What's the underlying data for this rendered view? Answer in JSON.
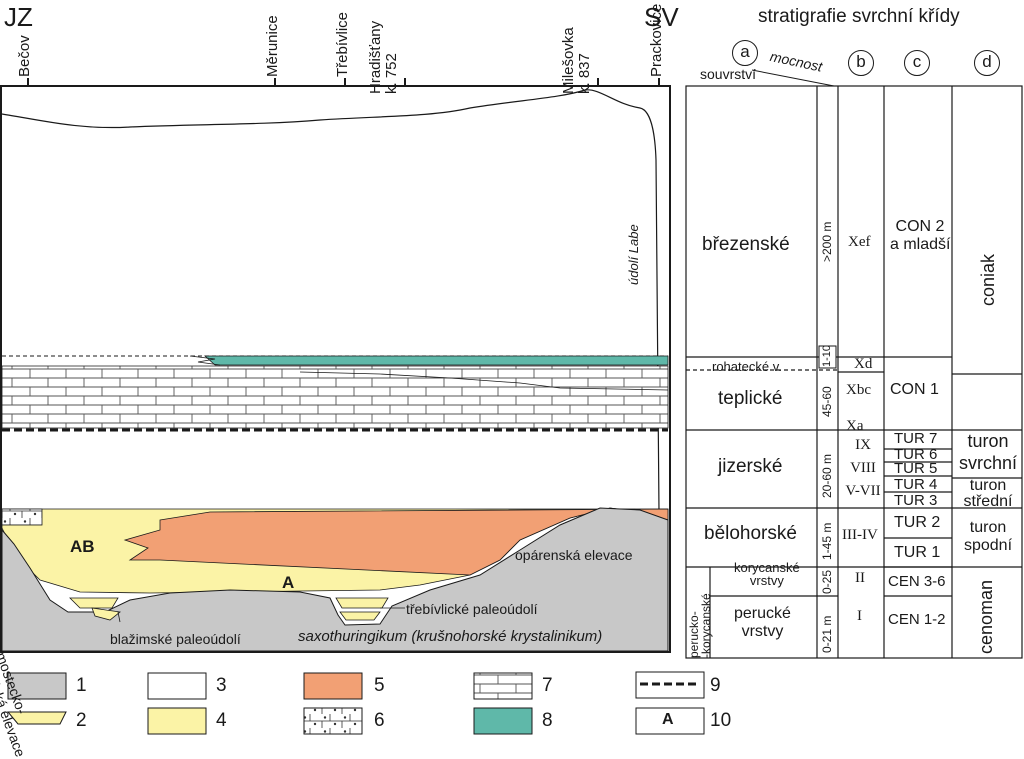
{
  "header": {
    "left_corner": "JZ",
    "right_corner": "SV",
    "strat_title": "stratigrafie svrchní křídy"
  },
  "localities": [
    {
      "id": "becov",
      "label": "Bečov"
    },
    {
      "id": "merunice",
      "label": "Měrunice"
    },
    {
      "id": "trebivlice",
      "label": "Třebívlice"
    },
    {
      "id": "hradistany",
      "label": "Hradišťany\nk. 752"
    },
    {
      "id": "milesovka",
      "label": "Milešovka\nk. 837"
    },
    {
      "id": "prackovice",
      "label": "Prackovice"
    }
  ],
  "section_labels": {
    "udoli_labe": "údolí Labe",
    "ab": "AB",
    "a": "A",
    "mostecko": "mostecko-\n-teplická elevace",
    "oparenska": "opárenská elevace",
    "trebivlicke": "třebívlické paleoúdolí",
    "blazimske": "blažimské paleoúdolí",
    "saxothuringikum": "saxothuringikum (krušnohorské krystalinikum)"
  },
  "columns": {
    "a_marker": "a",
    "b_marker": "b",
    "c_marker": "c",
    "d_marker": "d",
    "souvrstvi_header": "souvrství",
    "mocnost_header": "mocnost"
  },
  "formations": [
    {
      "name": "březenské",
      "thickness": ">200 m",
      "horizon": "Xef",
      "stage": "CON 2\na mladší"
    },
    {
      "name": "rohatecké v.",
      "thickness": "1-10",
      "horizon": "Xd",
      "stage": ""
    },
    {
      "name": "teplické",
      "thickness": "45-60",
      "horizon": "Xbc\n\nXa",
      "stage": "CON 1"
    },
    {
      "name": "jizerské",
      "thickness": "20-60 m",
      "horizon": "IX\nVIII\nV-VII",
      "stage": ""
    },
    {
      "name": "bělohorské",
      "thickness": "1-45 m",
      "horizon": "III-IV",
      "stage": ""
    },
    {
      "name": "korycanské\nvrstvy",
      "thickness": "0-25",
      "horizon": "II",
      "stage": "CEN 3-6"
    },
    {
      "name": "perucké\nvrstvy",
      "thickness": "0-21 m",
      "horizon": "I",
      "stage": "CEN 1-2"
    }
  ],
  "tur_stages": [
    "TUR 7",
    "TUR 6",
    "TUR 5",
    "TUR 4",
    "TUR 3",
    "TUR 2",
    "TUR 1"
  ],
  "perucko_korycanske": "perucko-\n-korycanské",
  "ages": [
    {
      "label": "coniak"
    },
    {
      "label": "turon\nsvrchní"
    },
    {
      "label": "turon\nstřední"
    },
    {
      "label": "turon\nspodní"
    },
    {
      "label": "cenoman"
    }
  ],
  "legend": [
    {
      "num": "1",
      "swatch": "basement",
      "color": "#c8c8c8"
    },
    {
      "num": "2",
      "swatch": "lens",
      "color": "#fbf3a6"
    },
    {
      "num": "3",
      "swatch": "white",
      "color": "#ffffff"
    },
    {
      "num": "4",
      "swatch": "yellow",
      "color": "#fbf3a6"
    },
    {
      "num": "5",
      "swatch": "orange",
      "color": "#f2a074"
    },
    {
      "num": "6",
      "swatch": "dots",
      "color": "#ffffff"
    },
    {
      "num": "7",
      "swatch": "bricks",
      "color": "#ffffff"
    },
    {
      "num": "8",
      "swatch": "teal",
      "color": "#5fb8a9"
    },
    {
      "num": "9",
      "swatch": "dashed",
      "color": "#1a1a1a"
    },
    {
      "num": "10",
      "swatch": "boxA",
      "label": "A"
    }
  ],
  "colors": {
    "basement": "#c8c8c8",
    "yellow": "#fbf3a6",
    "orange": "#f2a074",
    "teal": "#5fb8a9",
    "line": "#1a1a1a"
  }
}
